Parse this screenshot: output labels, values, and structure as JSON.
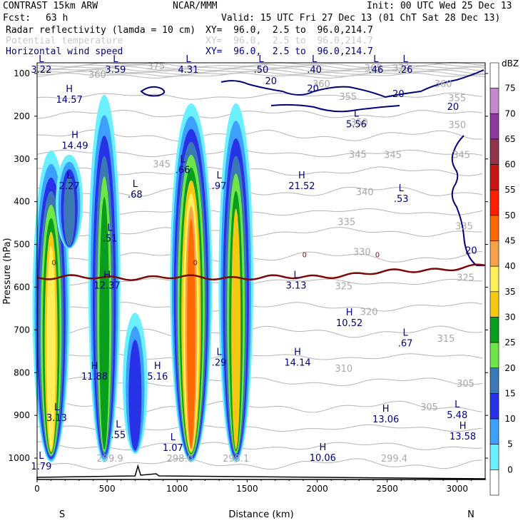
{
  "header": {
    "model": "CONTRAST 15km ARW",
    "org": "NCAR/MMM",
    "init": "Init: 00 UTC Wed 25 Dec 13",
    "fcst_label": "Fcst:",
    "fcst_value": "63 h",
    "valid": "Valid: 15 UTC Fri 27 Dec 13 (01 ChT Sat 28 Dec 13)",
    "fields": [
      {
        "name": "Radar reflectivity (lamda = 10 cm)",
        "xy": "XY=  96.0,  2.5 to  96.0,214.7",
        "color": "#000000"
      },
      {
        "name": "Potential temperature",
        "xy": "XY=  96.0,  2.5 to  96.0,214.7",
        "color": "#c8c8c8"
      },
      {
        "name": "Horizontal wind speed",
        "xy": "XY=  96.0,  2.5 to  96.0,214.7",
        "color": "#00007a"
      }
    ]
  },
  "chart_data": {
    "type": "cross-section",
    "xlabel": "Distance (km)",
    "ylabel": "Pressure (hPa)",
    "xlim": [
      0,
      3200
    ],
    "ylim": [
      1050,
      75
    ],
    "x_ticks": [
      0,
      500,
      1000,
      1500,
      2000,
      2500,
      3000
    ],
    "y_ticks": [
      100,
      200,
      300,
      400,
      500,
      600,
      700,
      800,
      900,
      1000
    ],
    "left_end": "S",
    "right_end": "N",
    "colorbar": {
      "unit": "dBZ",
      "levels": [
        "75",
        "70",
        "65",
        "60",
        "55",
        "50",
        "45",
        "40",
        "35",
        "30",
        "25",
        "20",
        "15",
        "10",
        "5",
        "0"
      ],
      "colors": [
        "#ffffff",
        "#c08ac8",
        "#8c3a9e",
        "#90344a",
        "#c81414",
        "#ff1e00",
        "#ff6a00",
        "#f5a24a",
        "#fff05a",
        "#f5c814",
        "#0a9e1e",
        "#6ee64a",
        "#3c78b4",
        "#2832e6",
        "#3ca0ff",
        "#6af0ff",
        "#ffffff"
      ]
    },
    "reflectivity_cells": [
      {
        "x": 100,
        "ptop": 280,
        "pbot": 1010,
        "max_dbz": 40
      },
      {
        "x": 230,
        "ptop": 290,
        "pbot": 510,
        "max_dbz": 20
      },
      {
        "x": 480,
        "ptop": 150,
        "pbot": 1010,
        "max_dbz": 30
      },
      {
        "x": 700,
        "ptop": 660,
        "pbot": 990,
        "max_dbz": 15
      },
      {
        "x": 1100,
        "ptop": 170,
        "pbot": 1010,
        "max_dbz": 50
      },
      {
        "x": 1420,
        "ptop": 170,
        "pbot": 1010,
        "max_dbz": 35
      }
    ],
    "wind_contours": [
      {
        "label": "20",
        "x": 1670,
        "p": 125
      },
      {
        "label": "20",
        "x": 1970,
        "p": 143
      },
      {
        "label": "20",
        "x": 2580,
        "p": 155
      },
      {
        "label": "20",
        "x": 2970,
        "p": 185
      },
      {
        "label": "20",
        "x": 3100,
        "p": 522
      }
    ],
    "theta_labels": [
      {
        "label": "360",
        "x": 430,
        "p": 110
      },
      {
        "label": "365",
        "x": 2400,
        "p": 95
      },
      {
        "label": "370",
        "x": 2600,
        "p": 95
      },
      {
        "label": "375",
        "x": 850,
        "p": 90
      },
      {
        "label": "360",
        "x": 2030,
        "p": 132
      },
      {
        "label": "360",
        "x": 2900,
        "p": 132
      },
      {
        "label": "355",
        "x": 2220,
        "p": 162
      },
      {
        "label": "355",
        "x": 3000,
        "p": 165
      },
      {
        "label": "350",
        "x": 2300,
        "p": 222
      },
      {
        "label": "350",
        "x": 3000,
        "p": 228
      },
      {
        "label": "345",
        "x": 890,
        "p": 320
      },
      {
        "label": "345",
        "x": 2290,
        "p": 297
      },
      {
        "label": "345",
        "x": 2540,
        "p": 298
      },
      {
        "label": "345",
        "x": 3030,
        "p": 298
      },
      {
        "label": "340",
        "x": 2340,
        "p": 385
      },
      {
        "label": "335",
        "x": 2210,
        "p": 455
      },
      {
        "label": "335",
        "x": 3050,
        "p": 465
      },
      {
        "label": "330",
        "x": 2320,
        "p": 525
      },
      {
        "label": "325",
        "x": 2190,
        "p": 605
      },
      {
        "label": "325",
        "x": 3060,
        "p": 585
      },
      {
        "label": "320",
        "x": 2370,
        "p": 665
      },
      {
        "label": "315",
        "x": 2920,
        "p": 728
      },
      {
        "label": "310",
        "x": 2190,
        "p": 798
      },
      {
        "label": "305",
        "x": 3060,
        "p": 833
      },
      {
        "label": "305",
        "x": 2800,
        "p": 888
      },
      {
        "label": "299.9",
        "x": 520,
        "p": 1008
      },
      {
        "label": "298.0",
        "x": 1020,
        "p": 1008
      },
      {
        "label": "298.1",
        "x": 1420,
        "p": 1008
      },
      {
        "label": "299.4",
        "x": 2550,
        "p": 1008
      }
    ],
    "zero_line_labels": [
      {
        "label": "0",
        "x": 120,
        "p": 548
      },
      {
        "label": "0",
        "x": 1130,
        "p": 548
      },
      {
        "label": "0",
        "x": 1910,
        "p": 530
      },
      {
        "label": "0",
        "x": 2430,
        "p": 530
      }
    ],
    "hl_markers": [
      {
        "type": "L",
        "value": "3.22",
        "x": 30,
        "p": 90
      },
      {
        "type": "L",
        "value": "3.59",
        "x": 560,
        "p": 90
      },
      {
        "type": "L",
        "value": "4.31",
        "x": 1080,
        "p": 90
      },
      {
        "type": "L",
        "value": ".50",
        "x": 1600,
        "p": 90
      },
      {
        "type": "L",
        "value": ".40",
        "x": 1980,
        "p": 90
      },
      {
        "type": "L",
        "value": ".46",
        "x": 2420,
        "p": 90
      },
      {
        "type": "L",
        "value": ".26",
        "x": 2630,
        "p": 90
      },
      {
        "type": "H",
        "value": "14.57",
        "x": 230,
        "p": 160
      },
      {
        "type": "L",
        "value": "5.56",
        "x": 2280,
        "p": 218
      },
      {
        "type": "H",
        "value": "14.49",
        "x": 270,
        "p": 268
      },
      {
        "type": "L",
        "value": ".66",
        "x": 1040,
        "p": 325
      },
      {
        "type": "L",
        "value": "2.27",
        "x": 230,
        "p": 362
      },
      {
        "type": "L",
        "value": ".68",
        "x": 700,
        "p": 382
      },
      {
        "type": "L",
        "value": ".97",
        "x": 1300,
        "p": 362
      },
      {
        "type": "H",
        "value": "21.52",
        "x": 1890,
        "p": 362
      },
      {
        "type": "L",
        "value": ".53",
        "x": 2600,
        "p": 392
      },
      {
        "type": "L",
        "value": ".51",
        "x": 520,
        "p": 485
      },
      {
        "type": "H",
        "value": "12.37",
        "x": 500,
        "p": 595
      },
      {
        "type": "L",
        "value": "3.13",
        "x": 1850,
        "p": 595
      },
      {
        "type": "H",
        "value": "10.52",
        "x": 2230,
        "p": 683
      },
      {
        "type": "L",
        "value": ".67",
        "x": 2630,
        "p": 730
      },
      {
        "type": "L",
        "value": ".29",
        "x": 1300,
        "p": 775
      },
      {
        "type": "H",
        "value": "14.14",
        "x": 1860,
        "p": 775
      },
      {
        "type": "H",
        "value": "11.88",
        "x": 410,
        "p": 808
      },
      {
        "type": "H",
        "value": "5.16",
        "x": 860,
        "p": 808
      },
      {
        "type": "L",
        "value": "5.48",
        "x": 3000,
        "p": 898
      },
      {
        "type": "L",
        "value": "3.13",
        "x": 140,
        "p": 905
      },
      {
        "type": "H",
        "value": "13.06",
        "x": 2490,
        "p": 908
      },
      {
        "type": "L",
        "value": ".55",
        "x": 580,
        "p": 945
      },
      {
        "type": "H",
        "value": "13.58",
        "x": 3040,
        "p": 948
      },
      {
        "type": "L",
        "value": "1.07",
        "x": 970,
        "p": 975
      },
      {
        "type": "H",
        "value": "10.06",
        "x": 2040,
        "p": 998
      },
      {
        "type": "L",
        "value": "1.79",
        "x": 30,
        "p": 1018
      }
    ]
  }
}
